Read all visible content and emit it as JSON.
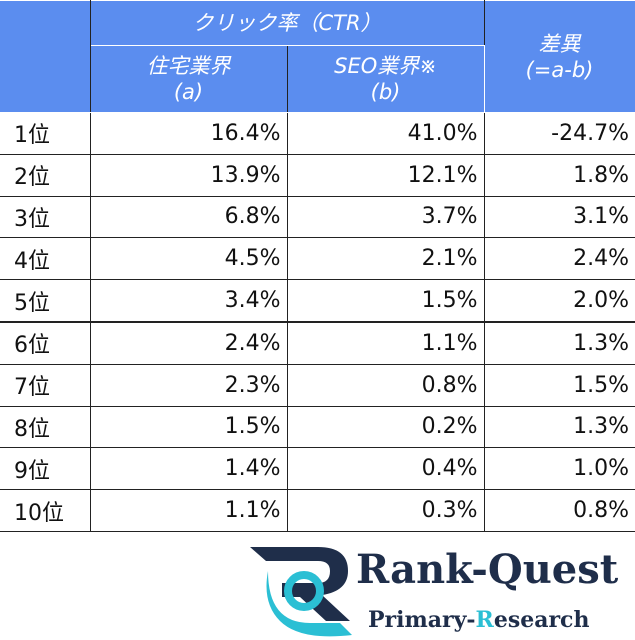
{
  "table": {
    "header": {
      "group": "クリック率（CTR）",
      "a": [
        "住宅業界",
        "(a)"
      ],
      "b": [
        "SEO業界※",
        "(b)"
      ],
      "diff": [
        "差異",
        "(=a-b)"
      ]
    },
    "rows": [
      [
        "1位",
        "16.4%",
        "41.0%",
        "-24.7%"
      ],
      [
        "2位",
        "13.9%",
        "12.1%",
        "1.8%"
      ],
      [
        "3位",
        "6.8%",
        "3.7%",
        "3.1%"
      ],
      [
        "4位",
        "4.5%",
        "2.1%",
        "2.4%"
      ],
      [
        "5位",
        "3.4%",
        "1.5%",
        "2.0%"
      ],
      [
        "6位",
        "2.4%",
        "1.1%",
        "1.3%"
      ],
      [
        "7位",
        "2.3%",
        "0.8%",
        "1.5%"
      ],
      [
        "8位",
        "1.5%",
        "0.2%",
        "1.3%"
      ],
      [
        "9位",
        "1.4%",
        "0.4%",
        "1.0%"
      ],
      [
        "10位",
        "1.1%",
        "0.3%",
        "0.8%"
      ]
    ]
  },
  "logo": {
    "name": "Rank-Quest",
    "tagline": [
      "Primary-",
      "R",
      "esearch"
    ]
  }
}
